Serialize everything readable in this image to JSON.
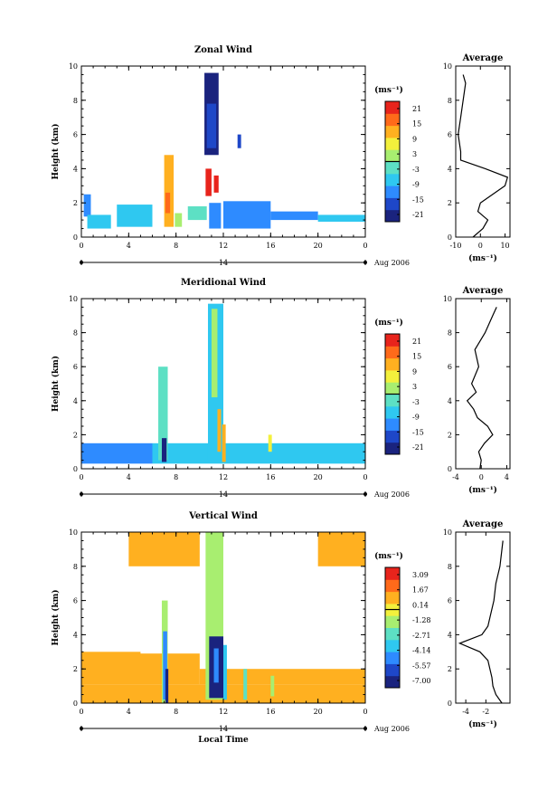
{
  "figure": {
    "date_label": "Aug 2006",
    "day_label": "14",
    "xlabel": "Local Time",
    "colorbar_unit": "(ms⁻¹)",
    "profile_title": "Average",
    "profile_xlabel": "(ms⁻¹)"
  },
  "chart_data": [
    {
      "type": "heatmap",
      "title": "Zonal Wind",
      "ylabel": "Height (km)",
      "xlim": [
        0,
        24
      ],
      "ylim": [
        0,
        10
      ],
      "xticks": [
        "0",
        "4",
        "8",
        "12",
        "16",
        "20",
        "0"
      ],
      "yticks": [
        "0",
        "2",
        "4",
        "6",
        "8",
        "10"
      ],
      "colorbar": {
        "vmin": -24,
        "vmax": 24,
        "ticks": [
          "21",
          "15",
          "9",
          "3",
          "-3",
          "-9",
          "-15",
          "-21"
        ],
        "zero_line": 0
      },
      "cells": [
        [
          0.2,
          1.2,
          0.6,
          1.3,
          -12
        ],
        [
          0.5,
          0.5,
          2.0,
          0.8,
          -6
        ],
        [
          3.0,
          0.6,
          3.0,
          1.3,
          -8
        ],
        [
          7.0,
          0.6,
          0.8,
          4.2,
          10
        ],
        [
          7.1,
          1.4,
          0.4,
          1.2,
          18
        ],
        [
          7.9,
          0.6,
          0.6,
          0.8,
          2
        ],
        [
          9.0,
          1.0,
          1.6,
          0.8,
          -4
        ],
        [
          10.8,
          0.5,
          1.0,
          1.5,
          -12
        ],
        [
          10.5,
          2.4,
          0.5,
          1.6,
          22
        ],
        [
          11.2,
          2.6,
          0.4,
          1.0,
          22
        ],
        [
          10.4,
          4.8,
          1.2,
          4.8,
          -22
        ],
        [
          10.6,
          5.2,
          0.8,
          2.6,
          -18
        ],
        [
          13.2,
          5.2,
          0.3,
          0.8,
          -16
        ],
        [
          12.0,
          0.5,
          4.0,
          1.6,
          -13
        ],
        [
          16.0,
          1.0,
          4.0,
          0.5,
          -10
        ],
        [
          20.0,
          0.9,
          4.0,
          0.4,
          -8
        ]
      ],
      "profile": {
        "xlim": [
          -10,
          12
        ],
        "xticks": [
          "-10",
          "0",
          "10"
        ],
        "height": [
          0,
          0.5,
          1.0,
          1.5,
          2.0,
          2.5,
          3.0,
          3.5,
          4.0,
          4.5,
          5.0,
          6.0,
          7.0,
          8.0,
          9.0,
          9.5
        ],
        "value": [
          -3,
          1,
          3,
          -1,
          0,
          5,
          10,
          11,
          2,
          -8,
          -8,
          -9,
          -8,
          -7,
          -6,
          -7
        ]
      }
    },
    {
      "type": "heatmap",
      "title": "Meridional Wind",
      "ylabel": "Height (km)",
      "xlim": [
        0,
        24
      ],
      "ylim": [
        0,
        10
      ],
      "xticks": [
        "0",
        "4",
        "8",
        "12",
        "16",
        "20",
        "0"
      ],
      "yticks": [
        "0",
        "2",
        "4",
        "6",
        "8",
        "10"
      ],
      "colorbar": {
        "vmin": -24,
        "vmax": 24,
        "ticks": [
          "21",
          "15",
          "9",
          "3",
          "-3",
          "-9",
          "-15",
          "-21"
        ],
        "zero_line": 0
      },
      "cells": [
        [
          0.0,
          0.3,
          6.0,
          1.2,
          -12
        ],
        [
          6.0,
          0.3,
          18.0,
          1.2,
          -6
        ],
        [
          6.5,
          0.5,
          0.8,
          5.5,
          -3
        ],
        [
          6.8,
          0.4,
          0.4,
          1.4,
          -22
        ],
        [
          10.7,
          0.5,
          1.3,
          9.2,
          -6
        ],
        [
          11.0,
          4.2,
          0.5,
          5.2,
          2
        ],
        [
          11.5,
          1.0,
          0.3,
          2.5,
          10
        ],
        [
          11.9,
          0.4,
          0.3,
          2.2,
          12
        ],
        [
          15.8,
          1.0,
          0.3,
          1.0,
          8
        ]
      ],
      "profile": {
        "xlim": [
          -4,
          4.5
        ],
        "xticks": [
          "-4",
          "0",
          "4"
        ],
        "height": [
          0,
          0.5,
          1.0,
          1.5,
          2.0,
          2.5,
          3.0,
          3.5,
          4.0,
          4.5,
          5.0,
          6.0,
          7.0,
          8.0,
          9.0,
          9.5
        ],
        "value": [
          -0.2,
          0,
          -0.4,
          0.5,
          1.8,
          1.0,
          -0.6,
          -1.2,
          -2.2,
          -0.8,
          -1.5,
          -0.4,
          -1.0,
          0.6,
          1.8,
          2.4
        ]
      }
    },
    {
      "type": "heatmap",
      "title": "Vertical Wind",
      "ylabel": "Height (km)",
      "xlabel": "Local Time",
      "xlim": [
        0,
        24
      ],
      "ylim": [
        0,
        10
      ],
      "xticks": [
        "0",
        "4",
        "8",
        "12",
        "16",
        "20",
        "0"
      ],
      "yticks": [
        "0",
        "2",
        "4",
        "6",
        "8",
        "10"
      ],
      "colorbar": {
        "vmin": -8,
        "vmax": 4,
        "ticks": [
          "3.09",
          "1.67",
          "0.14",
          "-1.28",
          "-2.71",
          "-4.14",
          "-5.57",
          "-7.00"
        ],
        "zero_line": -0.2
      },
      "cells": [
        [
          0.0,
          0.0,
          24.0,
          1.1,
          0.4
        ],
        [
          0.0,
          1.1,
          10.0,
          1.8,
          1.0
        ],
        [
          0.0,
          2.2,
          5.0,
          0.8,
          0.6
        ],
        [
          10.0,
          1.1,
          14.0,
          0.9,
          0.5
        ],
        [
          4.0,
          8.0,
          6.0,
          2.0,
          1.2
        ],
        [
          20.0,
          8.0,
          4.0,
          2.0,
          1.0
        ],
        [
          6.8,
          0.0,
          0.5,
          6.0,
          -1.5
        ],
        [
          6.9,
          0.2,
          0.35,
          4.0,
          -5.5
        ],
        [
          7.1,
          0.0,
          0.25,
          2.0,
          -7.5
        ],
        [
          10.5,
          0.2,
          1.5,
          9.8,
          -1.0
        ],
        [
          10.8,
          0.3,
          1.2,
          3.6,
          -7.5
        ],
        [
          11.2,
          1.2,
          0.4,
          2.0,
          -5.5
        ],
        [
          12.0,
          0.2,
          0.3,
          3.2,
          -4.0
        ],
        [
          13.7,
          0.2,
          0.3,
          1.8,
          -2.8
        ],
        [
          16.0,
          0.4,
          0.3,
          1.2,
          -2.0
        ]
      ],
      "profile": {
        "xlim": [
          -5,
          0.4
        ],
        "xticks": [
          "-4",
          "-2"
        ],
        "height": [
          0,
          0.5,
          1.0,
          1.5,
          2.0,
          2.5,
          3.0,
          3.5,
          4.0,
          4.5,
          5.0,
          6.0,
          7.0,
          8.0,
          9.0,
          9.5
        ],
        "value": [
          -0.4,
          -1.0,
          -1.3,
          -1.4,
          -1.6,
          -1.8,
          -2.6,
          -4.6,
          -2.4,
          -1.8,
          -1.6,
          -1.2,
          -1.0,
          -0.6,
          -0.4,
          -0.3
        ]
      }
    }
  ]
}
